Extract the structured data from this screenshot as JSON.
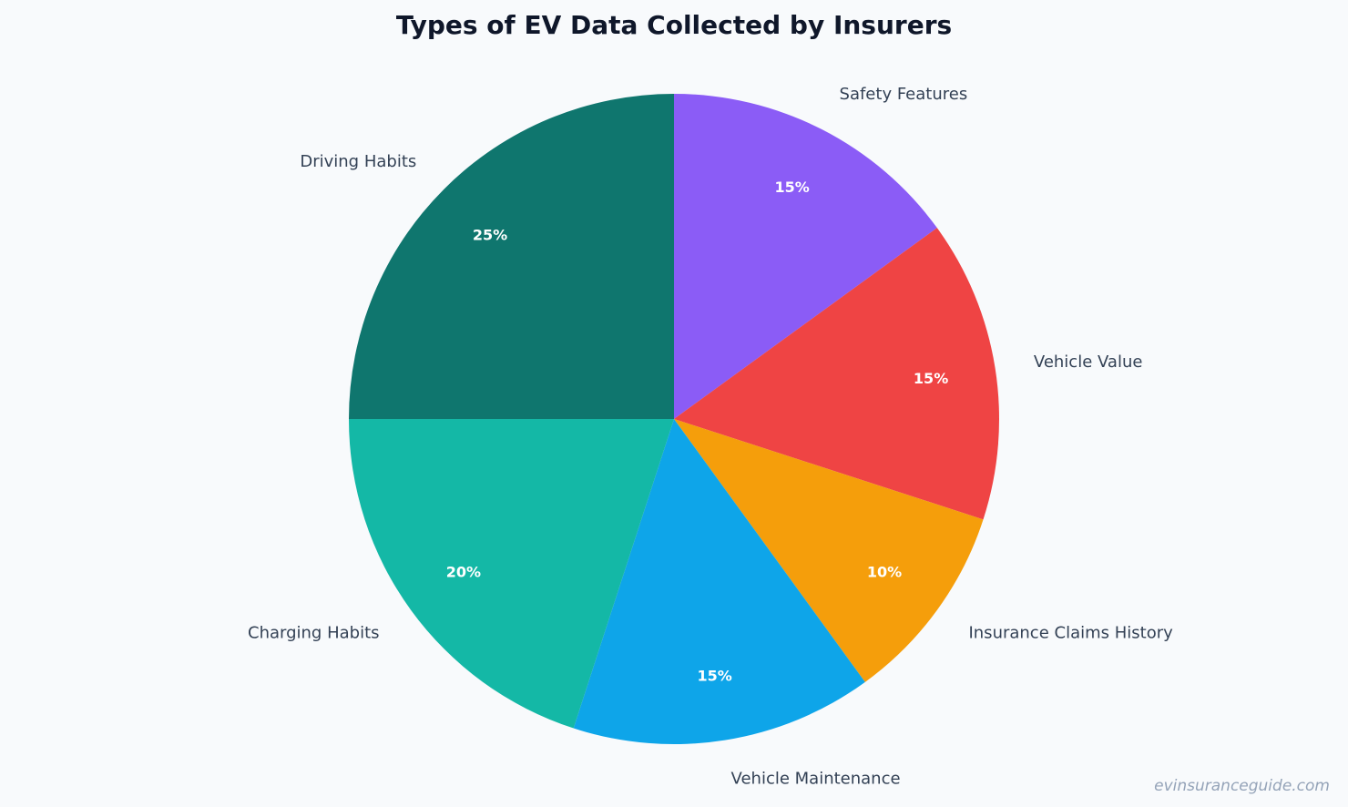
{
  "chart_data": {
    "type": "pie",
    "title": "Types of EV Data Collected by Insurers",
    "start_angle_deg": 90,
    "direction": "clockwise",
    "slices": [
      {
        "label": "Safety Features",
        "value": 15,
        "pct_label": "15%",
        "color": "#8b5cf6"
      },
      {
        "label": "Vehicle Value",
        "value": 15,
        "pct_label": "15%",
        "color": "#ef4444"
      },
      {
        "label": "Insurance Claims History",
        "value": 10,
        "pct_label": "10%",
        "color": "#f59e0b"
      },
      {
        "label": "Vehicle Maintenance",
        "value": 15,
        "pct_label": "15%",
        "color": "#0ea5e9"
      },
      {
        "label": "Charging Habits",
        "value": 20,
        "pct_label": "20%",
        "color": "#14b8a6"
      },
      {
        "label": "Driving Habits",
        "value": 25,
        "pct_label": "25%",
        "color": "#0f766e"
      }
    ]
  },
  "watermark": "evinsuranceguide.com"
}
